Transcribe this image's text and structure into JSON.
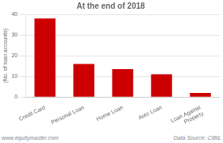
{
  "chart_data": {
    "type": "bar",
    "title": "At the end of 2018",
    "categories": [
      "Credit Card",
      "Personal Loan",
      "Home Loan",
      "Auto Loan",
      "Loan Against\nProperty"
    ],
    "values": [
      38,
      16,
      13.5,
      11,
      2
    ],
    "color": "#cc0000",
    "ylabel": "(No. of loan accounts)",
    "ylim": [
      0,
      40
    ],
    "yticks": [
      0,
      10,
      20,
      30,
      40
    ],
    "grid": true,
    "annotations": [
      "www.equitymaster.com",
      "Data Source: CIBIL"
    ]
  }
}
